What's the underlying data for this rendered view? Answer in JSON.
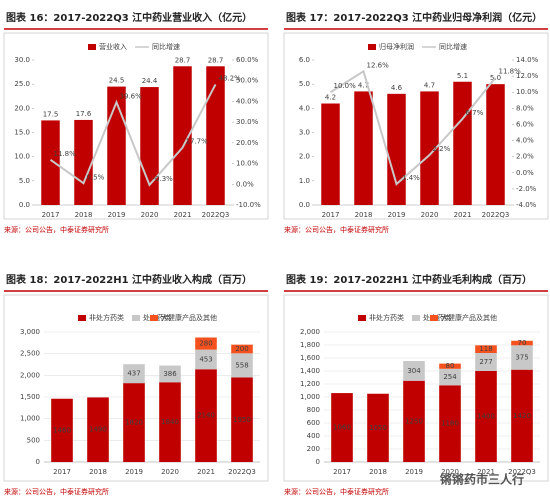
{
  "chart_data": [
    {
      "type": "bar",
      "title": "图表 16：2017-2022Q3 江中药业营业收入（亿元）",
      "source": "来源：公司公告，中泰证券研究所",
      "categories": [
        "2017",
        "2018",
        "2019",
        "2020",
        "2021",
        "2022Q3"
      ],
      "series": [
        {
          "name": "营业收入",
          "type": "bar",
          "color": "#c00000",
          "values": [
            17.5,
            17.6,
            24.5,
            24.4,
            28.7,
            28.7
          ],
          "value_labels": [
            "17.5",
            "17.6",
            "24.5",
            "24.4",
            "28.7",
            "28.7"
          ]
        },
        {
          "name": "同比增速",
          "type": "line",
          "axis": "y2",
          "color": "#c8c8c8",
          "values": [
            11.8,
            0.5,
            39.6,
            -0.3,
            17.7,
            48.2
          ],
          "value_labels": [
            "11.8%",
            "0.5%",
            "39.6%",
            "-0.3%",
            "17.7%",
            "48.2%"
          ]
        }
      ],
      "ylim": [
        0,
        30
      ],
      "yticks": [
        {
          "value": 0,
          "label": "0.0"
        },
        {
          "value": 5,
          "label": "5.0"
        },
        {
          "value": 10,
          "label": "10.0"
        },
        {
          "value": 15,
          "label": "15.0"
        },
        {
          "value": 20,
          "label": "20.0"
        },
        {
          "value": 25,
          "label": "25.0"
        },
        {
          "value": 30,
          "label": "30.0"
        }
      ],
      "y2lim": [
        -10,
        60
      ],
      "y2ticks": [
        {
          "value": -10,
          "label": "-10.0%"
        },
        {
          "value": 0,
          "label": "0.0%"
        },
        {
          "value": 10,
          "label": "10.0%"
        },
        {
          "value": 20,
          "label": "20.0%"
        },
        {
          "value": 30,
          "label": "30.0%"
        },
        {
          "value": 40,
          "label": "40.0%"
        },
        {
          "value": 50,
          "label": "50.0%"
        },
        {
          "value": 60,
          "label": "60.0%"
        }
      ],
      "grid": false
    },
    {
      "type": "bar",
      "title": "图表 17：2017-2022Q3 江中药业归母净利润（亿元）",
      "source": "来源：公司公告，中泰证券研究所",
      "categories": [
        "2017",
        "2018",
        "2019",
        "2020",
        "2021",
        "2022Q3"
      ],
      "series": [
        {
          "name": "归母净利润",
          "type": "bar",
          "color": "#c00000",
          "values": [
            4.2,
            4.7,
            4.6,
            4.7,
            5.1,
            5.0
          ],
          "value_labels": [
            "4.2",
            "4.7",
            "4.6",
            "4.7",
            "5.1",
            "5.0"
          ]
        },
        {
          "name": "同比增速",
          "type": "line",
          "axis": "y2",
          "color": "#c8c8c8",
          "values": [
            10.0,
            12.6,
            -1.4,
            2.2,
            6.7,
            11.8
          ],
          "value_labels": [
            "10.0%",
            "12.6%",
            "-1.4%",
            "2.2%",
            "6.7%",
            "11.8%"
          ]
        }
      ],
      "ylim": [
        0,
        6
      ],
      "yticks": [
        {
          "value": 0,
          "label": "0.0"
        },
        {
          "value": 1,
          "label": "1.0"
        },
        {
          "value": 2,
          "label": "2.0"
        },
        {
          "value": 3,
          "label": "3.0"
        },
        {
          "value": 4,
          "label": "4.0"
        },
        {
          "value": 5,
          "label": "5.0"
        },
        {
          "value": 6,
          "label": "6.0"
        }
      ],
      "y2lim": [
        -4,
        14
      ],
      "y2ticks": [
        {
          "value": -4,
          "label": "-4.0%"
        },
        {
          "value": -2,
          "label": "-2.0%"
        },
        {
          "value": 0,
          "label": "0.0%"
        },
        {
          "value": 2,
          "label": "2.0%"
        },
        {
          "value": 4,
          "label": "4.0%"
        },
        {
          "value": 6,
          "label": "6.0%"
        },
        {
          "value": 8,
          "label": "8.0%"
        },
        {
          "value": 10,
          "label": "10.0%"
        },
        {
          "value": 12,
          "label": "12.0%"
        },
        {
          "value": 14,
          "label": "14.0%"
        }
      ],
      "grid": false
    },
    {
      "type": "stacked_bar",
      "title": "图表 18：2017-2022H1 江中药业收入构成（百万）",
      "source": "来源：公司公告，中泰证券研究所",
      "categories": [
        "2017",
        "2018",
        "2019",
        "2020",
        "2021",
        "2022Q3"
      ],
      "series": [
        {
          "name": "非处方药类",
          "color": "#c00000",
          "values": [
            1460,
            1490,
            1820,
            1840,
            2140,
            1950
          ]
        },
        {
          "name": "处方药类",
          "color": "#c8c8c8",
          "values": [
            null,
            null,
            437,
            386,
            453,
            558
          ]
        },
        {
          "name": "大健康产品及其他",
          "color": "#f4511e",
          "values": [
            null,
            null,
            null,
            null,
            280,
            200
          ]
        }
      ],
      "ylim": [
        0,
        3000
      ],
      "yticks": [
        0,
        500,
        {
          "value": 1000,
          "label": "1,000"
        },
        {
          "value": 1500,
          "label": "1,500"
        },
        {
          "value": 2000,
          "label": "2,000"
        },
        {
          "value": 2500,
          "label": "2,500"
        },
        {
          "value": 3000,
          "label": "3,000"
        }
      ],
      "grid": true
    },
    {
      "type": "stacked_bar",
      "title": "图表 19：2017-2022H1 江中药业毛利构成（百万）",
      "source": "来源：公司公告，中泰证券研究所",
      "categories": [
        "2017",
        "2018",
        "2019",
        "2020",
        "2021",
        "2022Q3"
      ],
      "series": [
        {
          "name": "非处方药类",
          "color": "#c00000",
          "values": [
            1060,
            1050,
            1250,
            1180,
            1400,
            1420
          ]
        },
        {
          "name": "处方药类",
          "color": "#c8c8c8",
          "values": [
            null,
            null,
            304,
            254,
            277,
            375
          ]
        },
        {
          "name": "大健康产品及其他",
          "color": "#f4511e",
          "values": [
            null,
            null,
            null,
            80,
            118,
            70
          ]
        }
      ],
      "ylim": [
        0,
        2000
      ],
      "yticks": [
        0,
        200,
        400,
        600,
        800,
        {
          "value": 1000,
          "label": "1,000"
        },
        {
          "value": 1200,
          "label": "1,200"
        },
        {
          "value": 1400,
          "label": "1,400"
        },
        {
          "value": 1600,
          "label": "1,600"
        },
        {
          "value": 1800,
          "label": "1,800"
        },
        {
          "value": 2000,
          "label": "2,000"
        }
      ],
      "grid": true
    }
  ],
  "watermark": "锵锵药市三人行"
}
